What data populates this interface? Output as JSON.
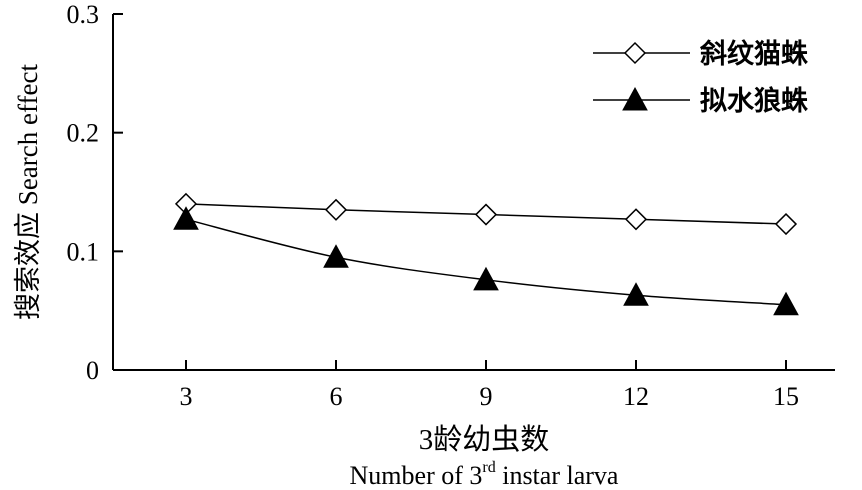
{
  "chart_data": {
    "type": "line",
    "x": [
      3,
      6,
      9,
      12,
      15
    ],
    "categories": [
      "3",
      "6",
      "9",
      "12",
      "15"
    ],
    "ylim": [
      0,
      0.3
    ],
    "yticks": [
      "0",
      "0.1",
      "0.2",
      "0.3"
    ],
    "ylabel": "搜索效应 Search effect",
    "xlabel_cn": "3龄幼虫数",
    "xlabel_en_pre": "Number of 3",
    "xlabel_en_sup": "rd",
    "xlabel_en_post": " instar larva",
    "legend_position": "top-right",
    "grid": false,
    "series": [
      {
        "name": "斜纹猫蛛",
        "marker": "diamond-open",
        "values": [
          0.14,
          0.135,
          0.131,
          0.127,
          0.123
        ]
      },
      {
        "name": "拟水狼蛛",
        "marker": "triangle-filled",
        "values": [
          0.127,
          0.095,
          0.076,
          0.063,
          0.055
        ]
      }
    ]
  }
}
